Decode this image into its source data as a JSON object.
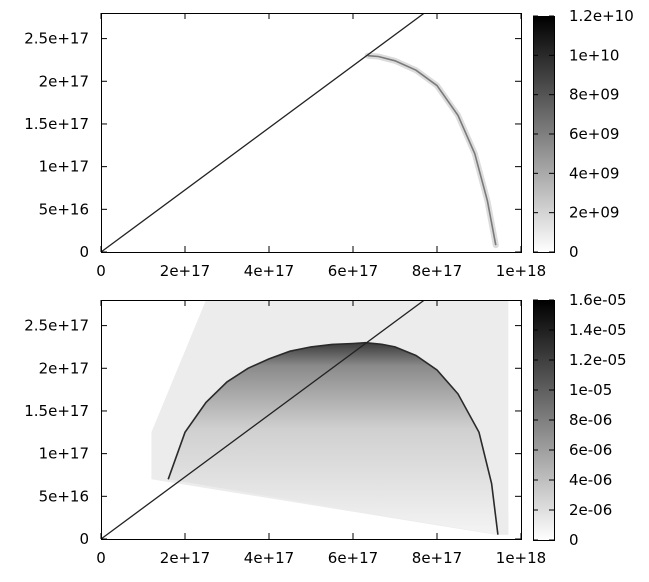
{
  "chart_data": [
    {
      "type": "heatmap",
      "title": "",
      "xlabel": "",
      "ylabel": "",
      "xlim": [
        0,
        1e+18
      ],
      "ylim": [
        0,
        2.8e+17
      ],
      "x_ticks": [
        {
          "value": 0,
          "label": "0"
        },
        {
          "value": 2e+17,
          "label": "2e+17"
        },
        {
          "value": 4e+17,
          "label": "4e+17"
        },
        {
          "value": 6e+17,
          "label": "6e+17"
        },
        {
          "value": 8e+17,
          "label": "8e+17"
        },
        {
          "value": 1e+18,
          "label": "1e+18"
        }
      ],
      "y_ticks": [
        {
          "value": 0,
          "label": "0"
        },
        {
          "value": 5e+16,
          "label": "5e+16"
        },
        {
          "value": 1e+17,
          "label": "1e+17"
        },
        {
          "value": 1.5e+17,
          "label": "1.5e+17"
        },
        {
          "value": 2e+17,
          "label": "2e+17"
        },
        {
          "value": 2.5e+17,
          "label": "2.5e+17"
        }
      ],
      "colorbar": {
        "range": [
          0,
          12000000000.0
        ],
        "ticks": [
          {
            "value": 0,
            "label": "0"
          },
          {
            "value": 2000000000.0,
            "label": "2e+09"
          },
          {
            "value": 4000000000.0,
            "label": "4e+09"
          },
          {
            "value": 6000000000.0,
            "label": "6e+09"
          },
          {
            "value": 8000000000.0,
            "label": "8e+09"
          },
          {
            "value": 10000000000.0,
            "label": "1e+10"
          },
          {
            "value": 12000000000.0,
            "label": "1.2e+10"
          }
        ],
        "colors": [
          "#ffffff",
          "#000000"
        ]
      },
      "diagonal_line": {
        "x": [
          0,
          7.7e+17
        ],
        "y": [
          0,
          2.8e+17
        ]
      },
      "thin_arc": {
        "x": [
          6.35e+17,
          6.6e+17,
          7e+17,
          7.5e+17,
          8e+17,
          8.5e+17,
          8.9e+17,
          9.2e+17,
          9.4e+17
        ],
        "y": [
          2.3e+17,
          2.29e+17,
          2.24e+17,
          2.13e+17,
          1.95e+17,
          1.6e+17,
          1.15e+17,
          6e+16,
          8000000000000000.0
        ]
      }
    },
    {
      "type": "heatmap",
      "title": "",
      "xlabel": "",
      "ylabel": "",
      "xlim": [
        0,
        1e+18
      ],
      "ylim": [
        0,
        2.8e+17
      ],
      "x_ticks": [
        {
          "value": 0,
          "label": "0"
        },
        {
          "value": 2e+17,
          "label": "2e+17"
        },
        {
          "value": 4e+17,
          "label": "4e+17"
        },
        {
          "value": 6e+17,
          "label": "6e+17"
        },
        {
          "value": 8e+17,
          "label": "8e+17"
        },
        {
          "value": 1e+18,
          "label": "1e+18"
        }
      ],
      "y_ticks": [
        {
          "value": 0,
          "label": "0"
        },
        {
          "value": 5e+16,
          "label": "5e+16"
        },
        {
          "value": 1e+17,
          "label": "1e+17"
        },
        {
          "value": 1.5e+17,
          "label": "1.5e+17"
        },
        {
          "value": 2e+17,
          "label": "2e+17"
        },
        {
          "value": 2.5e+17,
          "label": "2.5e+17"
        }
      ],
      "colorbar": {
        "range": [
          0,
          1.6e-05
        ],
        "ticks": [
          {
            "value": 0,
            "label": "0"
          },
          {
            "value": 2e-06,
            "label": "2e-06"
          },
          {
            "value": 4e-06,
            "label": "4e-06"
          },
          {
            "value": 6e-06,
            "label": "6e-06"
          },
          {
            "value": 8e-06,
            "label": "8e-06"
          },
          {
            "value": 1e-05,
            "label": "1e-05"
          },
          {
            "value": 1.2e-05,
            "label": "1.2e-05"
          },
          {
            "value": 1.4e-05,
            "label": "1.4e-05"
          },
          {
            "value": 1.6e-05,
            "label": "1.6e-05"
          }
        ],
        "colors": [
          "#ffffff",
          "#000000"
        ]
      },
      "diagonal_line": {
        "x": [
          0,
          7.7e+17
        ],
        "y": [
          0,
          2.8e+17
        ]
      },
      "background_region": {
        "x": [
          1.2e+17,
          1.2e+17,
          2.5e+17,
          9.7e+17,
          9.7e+17,
          9.4e+17
        ],
        "y": [
          7e+16,
          1.25e+17,
          2.8e+17,
          2.8e+17,
          5000000000000000.0,
          5000000000000000.0
        ]
      },
      "filled_dome": {
        "x": [
          1.6e+17,
          2e+17,
          2.5e+17,
          3e+17,
          3.5e+17,
          4e+17,
          4.5e+17,
          5e+17,
          5.5e+17,
          6e+17,
          6.3e+17,
          6.7e+17,
          7e+17,
          7.5e+17,
          8e+17,
          8.5e+17,
          9e+17,
          9.3e+17,
          9.45e+17
        ],
        "y": [
          7e+16,
          1.25e+17,
          1.6e+17,
          1.84e+17,
          2e+17,
          2.11e+17,
          2.2e+17,
          2.25e+17,
          2.28e+17,
          2.29e+17,
          2.3e+17,
          2.28e+17,
          2.25e+17,
          2.15e+17,
          1.98e+17,
          1.7e+17,
          1.25e+17,
          6.5e+16,
          5000000000000000.0
        ]
      }
    }
  ]
}
